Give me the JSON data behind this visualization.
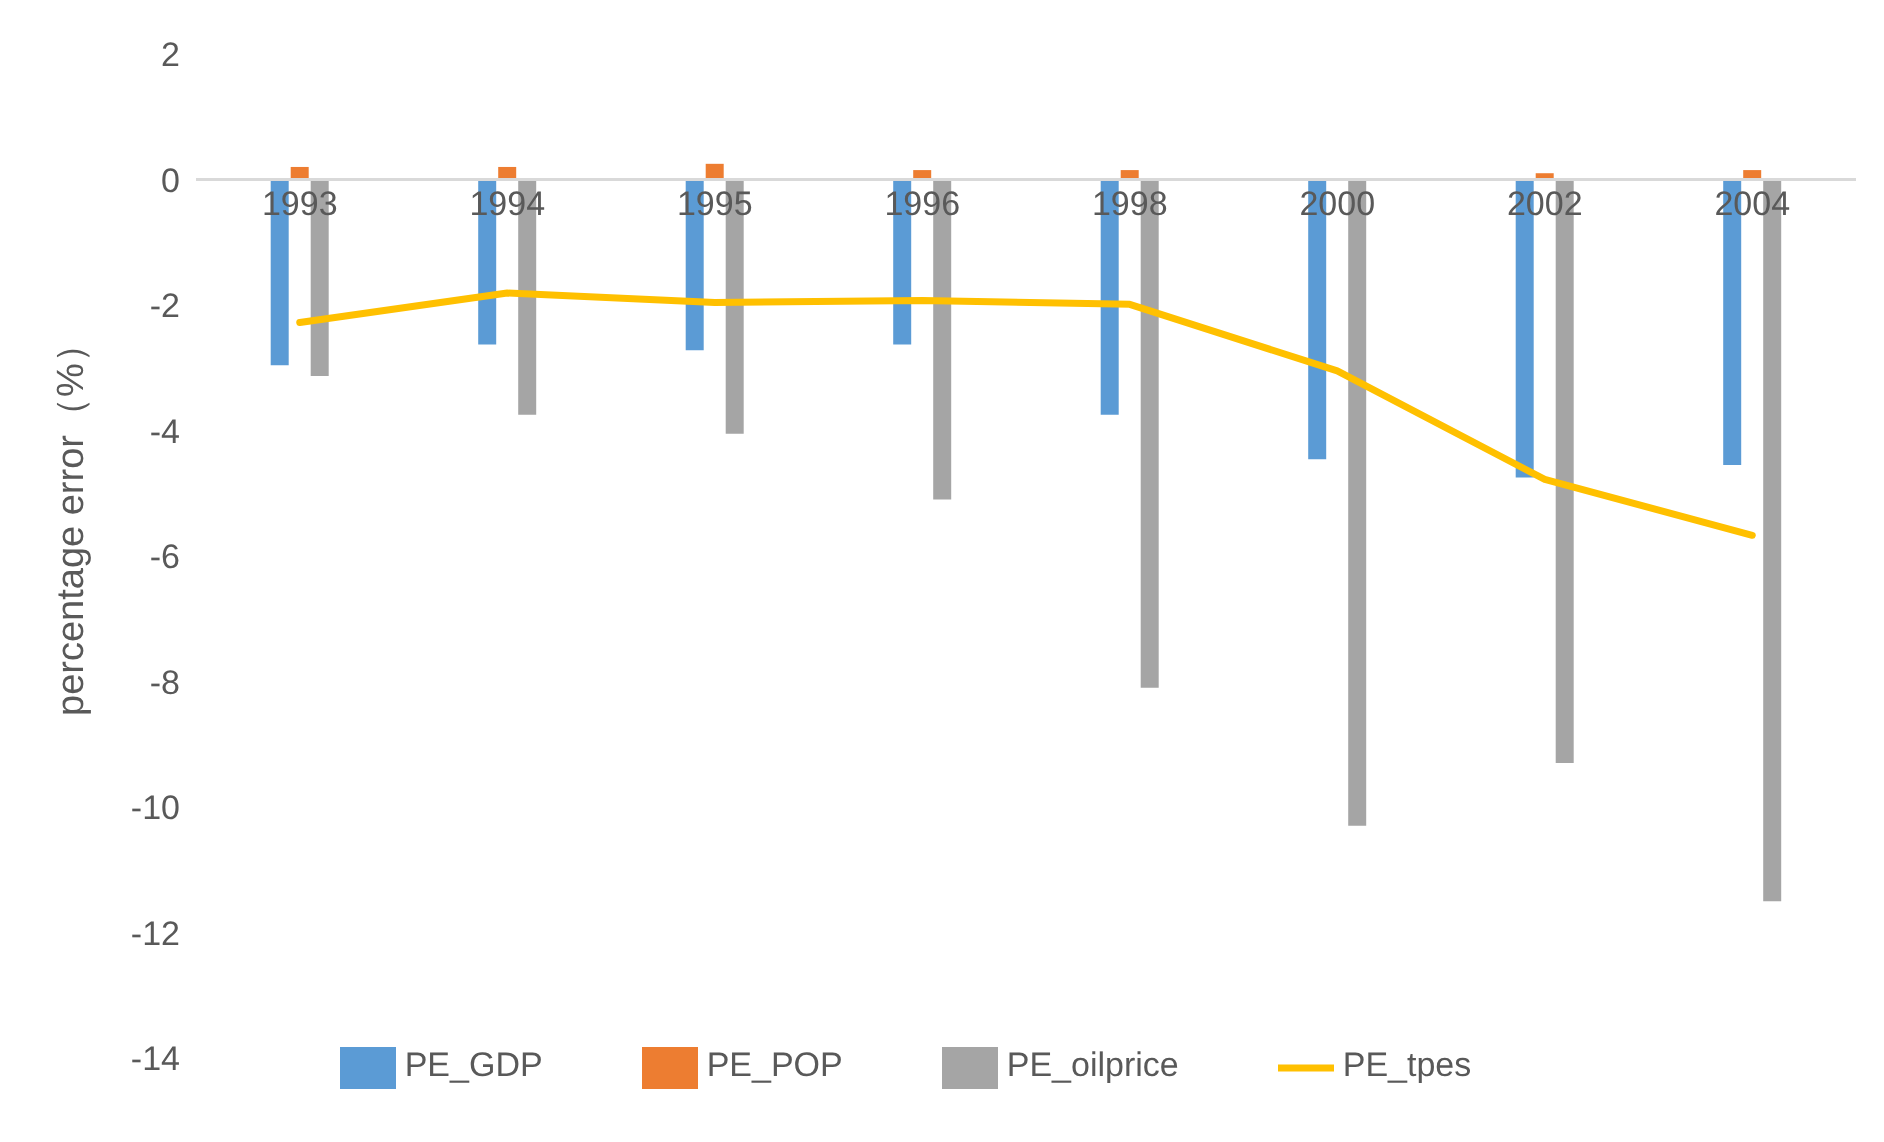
{
  "chart_data": {
    "type": "bar",
    "ylabel": "percentage error（%）",
    "categories": [
      "1993",
      "1994",
      "1995",
      "1996",
      "1998",
      "2000",
      "2002",
      "2004"
    ],
    "series": [
      {
        "name": "PE_GDP",
        "color": "#5b9bd5",
        "values": [
          -2.96,
          -2.63,
          -2.72,
          -2.63,
          -3.75,
          -4.46,
          -4.75,
          -4.55
        ]
      },
      {
        "name": "PE_POP",
        "color": "#ed7d31",
        "values": [
          0.2,
          0.2,
          0.25,
          0.15,
          0.15,
          0,
          0.1,
          0.15
        ]
      },
      {
        "name": "PE_oilprice",
        "color": "#a5a5a5",
        "values": [
          -3.13,
          -3.75,
          -4.05,
          -5.1,
          -8.1,
          -10.3,
          -9.3,
          -11.5
        ]
      },
      {
        "name": "PE_tpes",
        "type": "line",
        "color": "#ffc000",
        "values": [
          -2.28,
          -1.81,
          -1.96,
          -1.93,
          -1.99,
          -3.05,
          -4.78,
          -5.67
        ]
      }
    ],
    "ylim": [
      -14,
      2
    ],
    "yticks": [
      -14,
      -12,
      -10,
      -8,
      -6,
      -4,
      -2,
      0,
      2
    ],
    "grid": false,
    "legend": "bottom",
    "marker": "none",
    "line_style": "solid"
  }
}
